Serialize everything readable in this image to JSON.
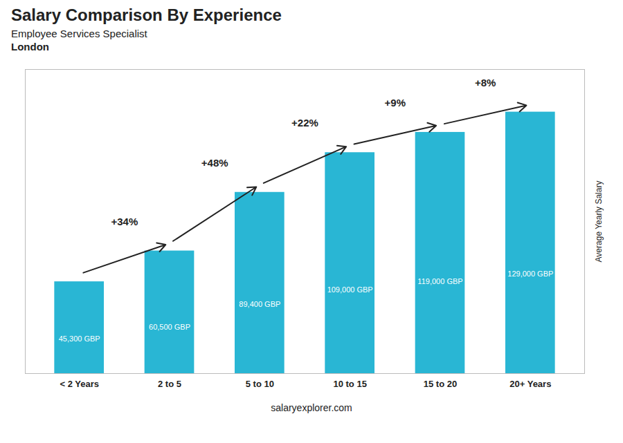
{
  "chart_data": {
    "type": "bar",
    "title": "Salary Comparison By Experience",
    "subtitle": "Employee Services Specialist",
    "location": "London",
    "ylabel": "Average Yearly Salary",
    "caption": "salaryexplorer.com",
    "categories": [
      "< 2 Years",
      "2 to 5",
      "5 to 10",
      "10 to 15",
      "15 to 20",
      "20+ Years"
    ],
    "values": [
      45300,
      60500,
      89400,
      109000,
      119000,
      129000
    ],
    "value_labels": [
      "45,300 GBP",
      "60,500 GBP",
      "89,400 GBP",
      "109,000 GBP",
      "119,000 GBP",
      "129,000 GBP"
    ],
    "data_labels": true,
    "annotations": [
      "+34%",
      "+48%",
      "+22%",
      "+9%",
      "+8%"
    ],
    "color": "#29b6d4",
    "ylim": [
      0,
      150000
    ],
    "grid": false,
    "tick_labels": "x"
  }
}
